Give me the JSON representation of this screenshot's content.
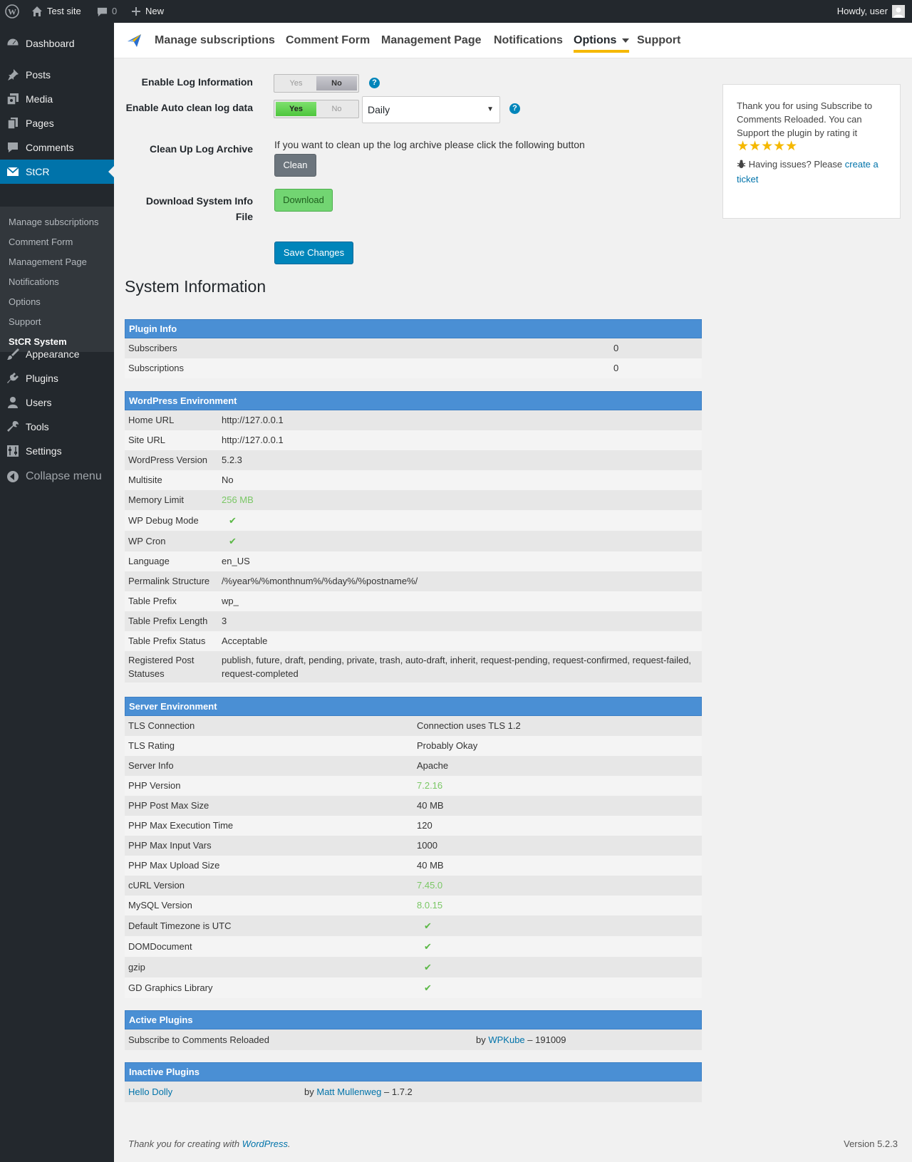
{
  "adminbar": {
    "site_name": "Test site",
    "comments_count": "0",
    "new_label": "New",
    "howdy": "Howdy, user"
  },
  "sidebar": {
    "items": [
      {
        "label": "Dashboard",
        "icon": "dashboard-icon"
      },
      {
        "label": "Posts",
        "icon": "pin-icon"
      },
      {
        "label": "Media",
        "icon": "media-icon"
      },
      {
        "label": "Pages",
        "icon": "page-icon"
      },
      {
        "label": "Comments",
        "icon": "comment-icon"
      },
      {
        "label": "StCR",
        "icon": "envelope-icon"
      },
      {
        "label": "Appearance",
        "icon": "brush-icon"
      },
      {
        "label": "Plugins",
        "icon": "plugin-icon"
      },
      {
        "label": "Users",
        "icon": "user-icon"
      },
      {
        "label": "Tools",
        "icon": "wrench-icon"
      },
      {
        "label": "Settings",
        "icon": "settings-icon"
      },
      {
        "label": "Collapse menu",
        "icon": "collapse-icon"
      }
    ],
    "submenu": [
      "Manage subscriptions",
      "Comment Form",
      "Management Page",
      "Notifications",
      "Options",
      "Support",
      "StCR System"
    ]
  },
  "topnav": {
    "tabs": [
      "Manage subscriptions",
      "Comment Form",
      "Management Page",
      "Notifications",
      "Options",
      "Support"
    ],
    "active": "Options"
  },
  "form": {
    "log_info_label": "Enable Log Information",
    "auto_clean_label": "Enable Auto clean log data",
    "cleanup_label": "Clean Up Log Archive",
    "download_label": "Download System Info File",
    "toggle_yes": "Yes",
    "toggle_no": "No",
    "log_info_value": "No",
    "auto_clean_value": "Yes",
    "frequency": "Daily",
    "cleanup_text": "If you want to clean up the log archive please click the following button",
    "clean_button": "Clean",
    "download_button": "Download",
    "save_button": "Save Changes",
    "help": "?"
  },
  "system": {
    "title": "System Information",
    "plugin_info": {
      "header": "Plugin Info",
      "rows": [
        [
          "Subscribers",
          "0"
        ],
        [
          "Subscriptions",
          "0"
        ]
      ]
    },
    "wp_env": {
      "header": "WordPress Environment",
      "rows": [
        [
          "Home URL",
          "http://127.0.0.1"
        ],
        [
          "Site URL",
          "http://127.0.0.1"
        ],
        [
          "WordPress Version",
          "5.2.3"
        ],
        [
          "Multisite",
          "No"
        ],
        [
          "Memory Limit",
          "256 MB"
        ],
        [
          "WP Debug Mode",
          "✔"
        ],
        [
          "WP Cron",
          "✔"
        ],
        [
          "Language",
          "en_US"
        ],
        [
          "Permalink Structure",
          "/%year%/%monthnum%/%day%/%postname%/"
        ],
        [
          "Table Prefix",
          "wp_"
        ],
        [
          "Table Prefix Length",
          "3"
        ],
        [
          "Table Prefix Status",
          "Acceptable"
        ],
        [
          "Registered Post Statuses",
          "publish, future, draft, pending, private, trash, auto-draft, inherit, request-pending, request-confirmed, request-failed, request-completed"
        ]
      ]
    },
    "server_env": {
      "header": "Server Environment",
      "rows": [
        [
          "TLS Connection",
          "Connection uses TLS 1.2"
        ],
        [
          "TLS Rating",
          "Probably Okay"
        ],
        [
          "Server Info",
          "Apache"
        ],
        [
          "PHP Version",
          "7.2.16"
        ],
        [
          "PHP Post Max Size",
          "40 MB"
        ],
        [
          "PHP Max Execution Time",
          "120"
        ],
        [
          "PHP Max Input Vars",
          "1000"
        ],
        [
          "PHP Max Upload Size",
          "40 MB"
        ],
        [
          "cURL Version",
          "7.45.0"
        ],
        [
          "MySQL Version",
          "8.0.15"
        ],
        [
          "Default Timezone is UTC",
          "✔"
        ],
        [
          "DOMDocument",
          "✔"
        ],
        [
          "gzip",
          "✔"
        ],
        [
          "GD Graphics Library",
          "✔"
        ]
      ]
    },
    "active_plugins": {
      "header": "Active Plugins",
      "name": "Subscribe to Comments Reloaded",
      "by": "by",
      "author": "WPKube",
      "version": "– 191009"
    },
    "inactive_plugins": {
      "header": "Inactive Plugins",
      "name": "Hello Dolly",
      "by": "by",
      "author": "Matt Mullenweg",
      "version": "– 1.7.2"
    }
  },
  "widget": {
    "thanks": "Thank you for using Subscribe to Comments Reloaded. You can Support the plugin by rating it",
    "stars": "★★★★★",
    "issues": "Having issues? Please",
    "ticket_link": "create a ticket"
  },
  "footer": {
    "thanks": "Thank you for creating with",
    "wp_link": "WordPress",
    "period": ".",
    "version": "Version 5.2.3"
  },
  "colors": {
    "accent": "#0073aa",
    "table_header": "#4a8fd4",
    "ok_green": "#7ac765",
    "star": "#f5b800"
  }
}
